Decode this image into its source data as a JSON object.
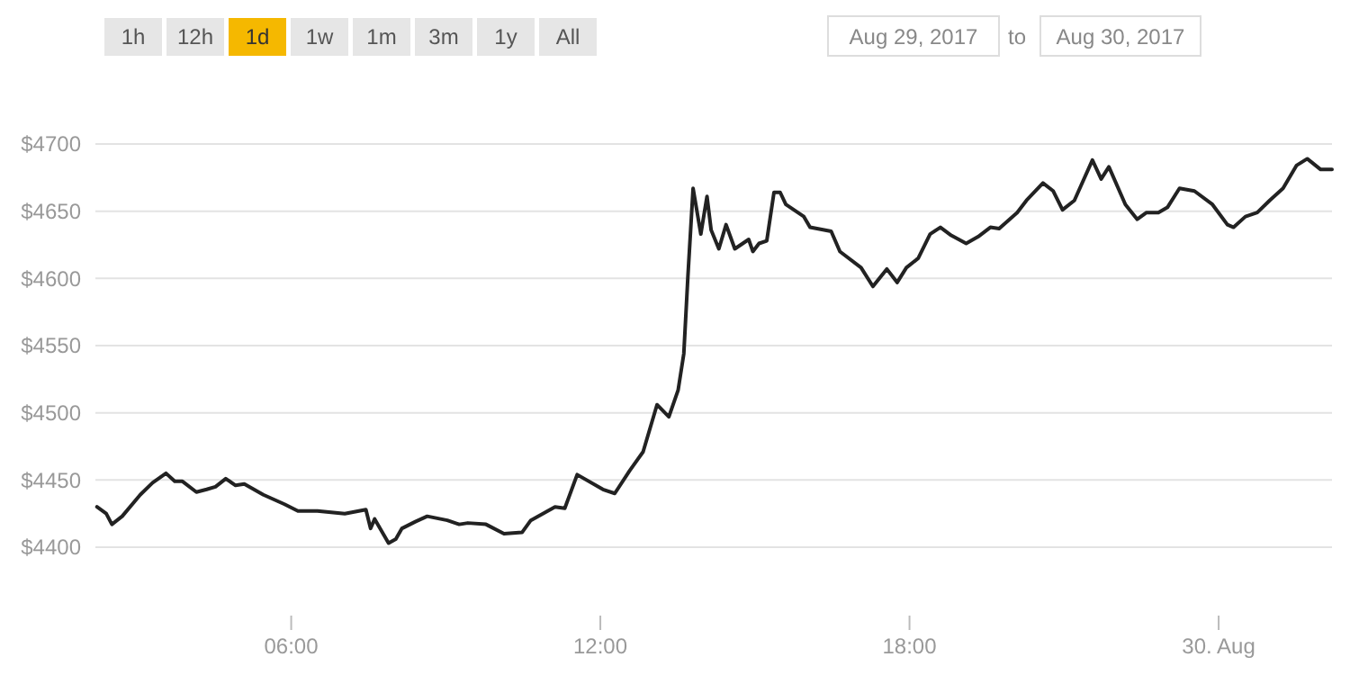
{
  "chart_data": {
    "type": "line",
    "annotations": [
      "1h",
      "12h",
      "1d",
      "1w",
      "1m",
      "3m",
      "1y",
      "All",
      "Aug 29, 2017",
      "to",
      "Aug 30, 2017"
    ],
    "xlim": [
      2.2,
      26.2
    ],
    "xticks": [
      {
        "value": 6,
        "label": "06:00"
      },
      {
        "value": 12,
        "label": "12:00"
      },
      {
        "value": 18,
        "label": "18:00"
      },
      {
        "value": 24,
        "label": "30. Aug"
      }
    ],
    "ylim": [
      4400,
      4700
    ],
    "yticks": [
      {
        "value": 4400,
        "label": "$4400"
      },
      {
        "value": 4450,
        "label": "$4450"
      },
      {
        "value": 4500,
        "label": "$4500"
      },
      {
        "value": 4550,
        "label": "$4550"
      },
      {
        "value": 4600,
        "label": "$4600"
      },
      {
        "value": 4650,
        "label": "$4650"
      },
      {
        "value": 4700,
        "label": "$4700"
      }
    ],
    "grid": "y",
    "marker": "none",
    "line_style": "solid",
    "series": [
      {
        "color": "#222222",
        "x": [
          2.23,
          2.41,
          2.52,
          2.72,
          3.07,
          3.31,
          3.57,
          3.74,
          3.89,
          4.16,
          4.36,
          4.53,
          4.73,
          4.92,
          5.09,
          5.46,
          5.87,
          6.13,
          6.51,
          7.04,
          7.45,
          7.54,
          7.62,
          7.89,
          8.03,
          8.15,
          8.41,
          8.64,
          9.03,
          9.26,
          9.43,
          9.78,
          10.13,
          10.48,
          10.65,
          11.12,
          11.31,
          11.55,
          12.05,
          12.28,
          12.57,
          12.83,
          13.1,
          13.33,
          13.51,
          13.62,
          13.7,
          13.8,
          13.95,
          14.07,
          14.15,
          14.3,
          14.44,
          14.61,
          14.88,
          14.96,
          15.08,
          15.23,
          15.37,
          15.49,
          15.6,
          15.95,
          16.07,
          16.48,
          16.65,
          17.06,
          17.29,
          17.56,
          17.76,
          17.94,
          18.17,
          18.4,
          18.6,
          18.81,
          19.1,
          19.33,
          19.57,
          19.74,
          20.09,
          20.27,
          20.59,
          20.79,
          20.97,
          21.2,
          21.55,
          21.72,
          21.87,
          22.19,
          22.42,
          22.6,
          22.83,
          23.01,
          23.24,
          23.53,
          23.88,
          24.17,
          24.29,
          24.52,
          24.75,
          24.99,
          25.25,
          25.51,
          25.72,
          25.98,
          26.2
        ],
        "values": [
          4430,
          4425,
          4417,
          4423,
          4439,
          4448,
          4455,
          4449,
          4449,
          4441,
          4443,
          4445,
          4451,
          4446,
          4447,
          4439,
          4432,
          4427,
          4427,
          4425,
          4428,
          4414,
          4421,
          4403,
          4406,
          4414,
          4419,
          4423,
          4420,
          4417,
          4418,
          4417,
          4410,
          4411,
          4420,
          4430,
          4429,
          4454,
          4443,
          4440,
          4457,
          4471,
          4506,
          4497,
          4517,
          4544,
          4602,
          4667,
          4633,
          4661,
          4636,
          4622,
          4640,
          4622,
          4629,
          4620,
          4626,
          4628,
          4664,
          4664,
          4655,
          4646,
          4638,
          4635,
          4620,
          4608,
          4594,
          4607,
          4597,
          4608,
          4615,
          4633,
          4638,
          4632,
          4626,
          4631,
          4638,
          4637,
          4649,
          4658,
          4671,
          4665,
          4651,
          4658,
          4688,
          4674,
          4683,
          4655,
          4644,
          4649,
          4649,
          4653,
          4667,
          4665,
          4655,
          4640,
          4638,
          4646,
          4649,
          4658,
          4667,
          4684,
          4689,
          4681,
          4681
        ]
      }
    ]
  }
}
